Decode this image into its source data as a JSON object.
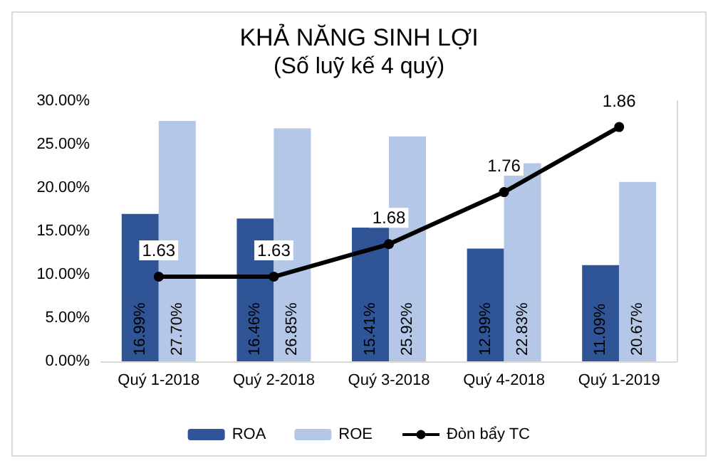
{
  "chart_data": {
    "type": "bar",
    "title": "KHẢ NĂNG SINH LỢI",
    "subtitle": "(Số luỹ kế 4 quý)",
    "categories": [
      "Quý 1-2018",
      "Quý 2-2018",
      "Quý 3-2018",
      "Quý 4-2018",
      "Quý 1-2019"
    ],
    "series": [
      {
        "name": "ROA",
        "color": "#2f5597",
        "values": [
          16.99,
          16.46,
          15.41,
          12.99,
          11.09
        ],
        "value_labels": [
          "16.99%",
          "16.46%",
          "15.41%",
          "12.99%",
          "11.09%"
        ]
      },
      {
        "name": "ROE",
        "color": "#b4c7e7",
        "values": [
          27.7,
          26.85,
          25.92,
          22.83,
          20.67
        ],
        "value_labels": [
          "27.70%",
          "26.85%",
          "25.92%",
          "22.83%",
          "20.67%"
        ]
      },
      {
        "name": "Đòn bẩy TC",
        "type": "line",
        "axis": "y2",
        "color": "#000000",
        "values": [
          1.63,
          1.63,
          1.68,
          1.76,
          1.86
        ],
        "value_labels": [
          "1.63",
          "1.63",
          "1.68",
          "1.76",
          "1.86"
        ]
      }
    ],
    "ylim": [
      0,
      30
    ],
    "yticks": [
      {
        "value": 0,
        "label": "0.00%"
      },
      {
        "value": 5,
        "label": "5.00%"
      },
      {
        "value": 10,
        "label": "10.00%"
      },
      {
        "value": 15,
        "label": "15.00%"
      },
      {
        "value": 20,
        "label": "20.00%"
      },
      {
        "value": 25,
        "label": "25.00%"
      },
      {
        "value": 30,
        "label": "30.00%"
      }
    ],
    "y2lim": [
      1.5,
      1.9
    ],
    "grid": false,
    "legend": "bottom",
    "marker": "circle",
    "line_style": "solid"
  }
}
